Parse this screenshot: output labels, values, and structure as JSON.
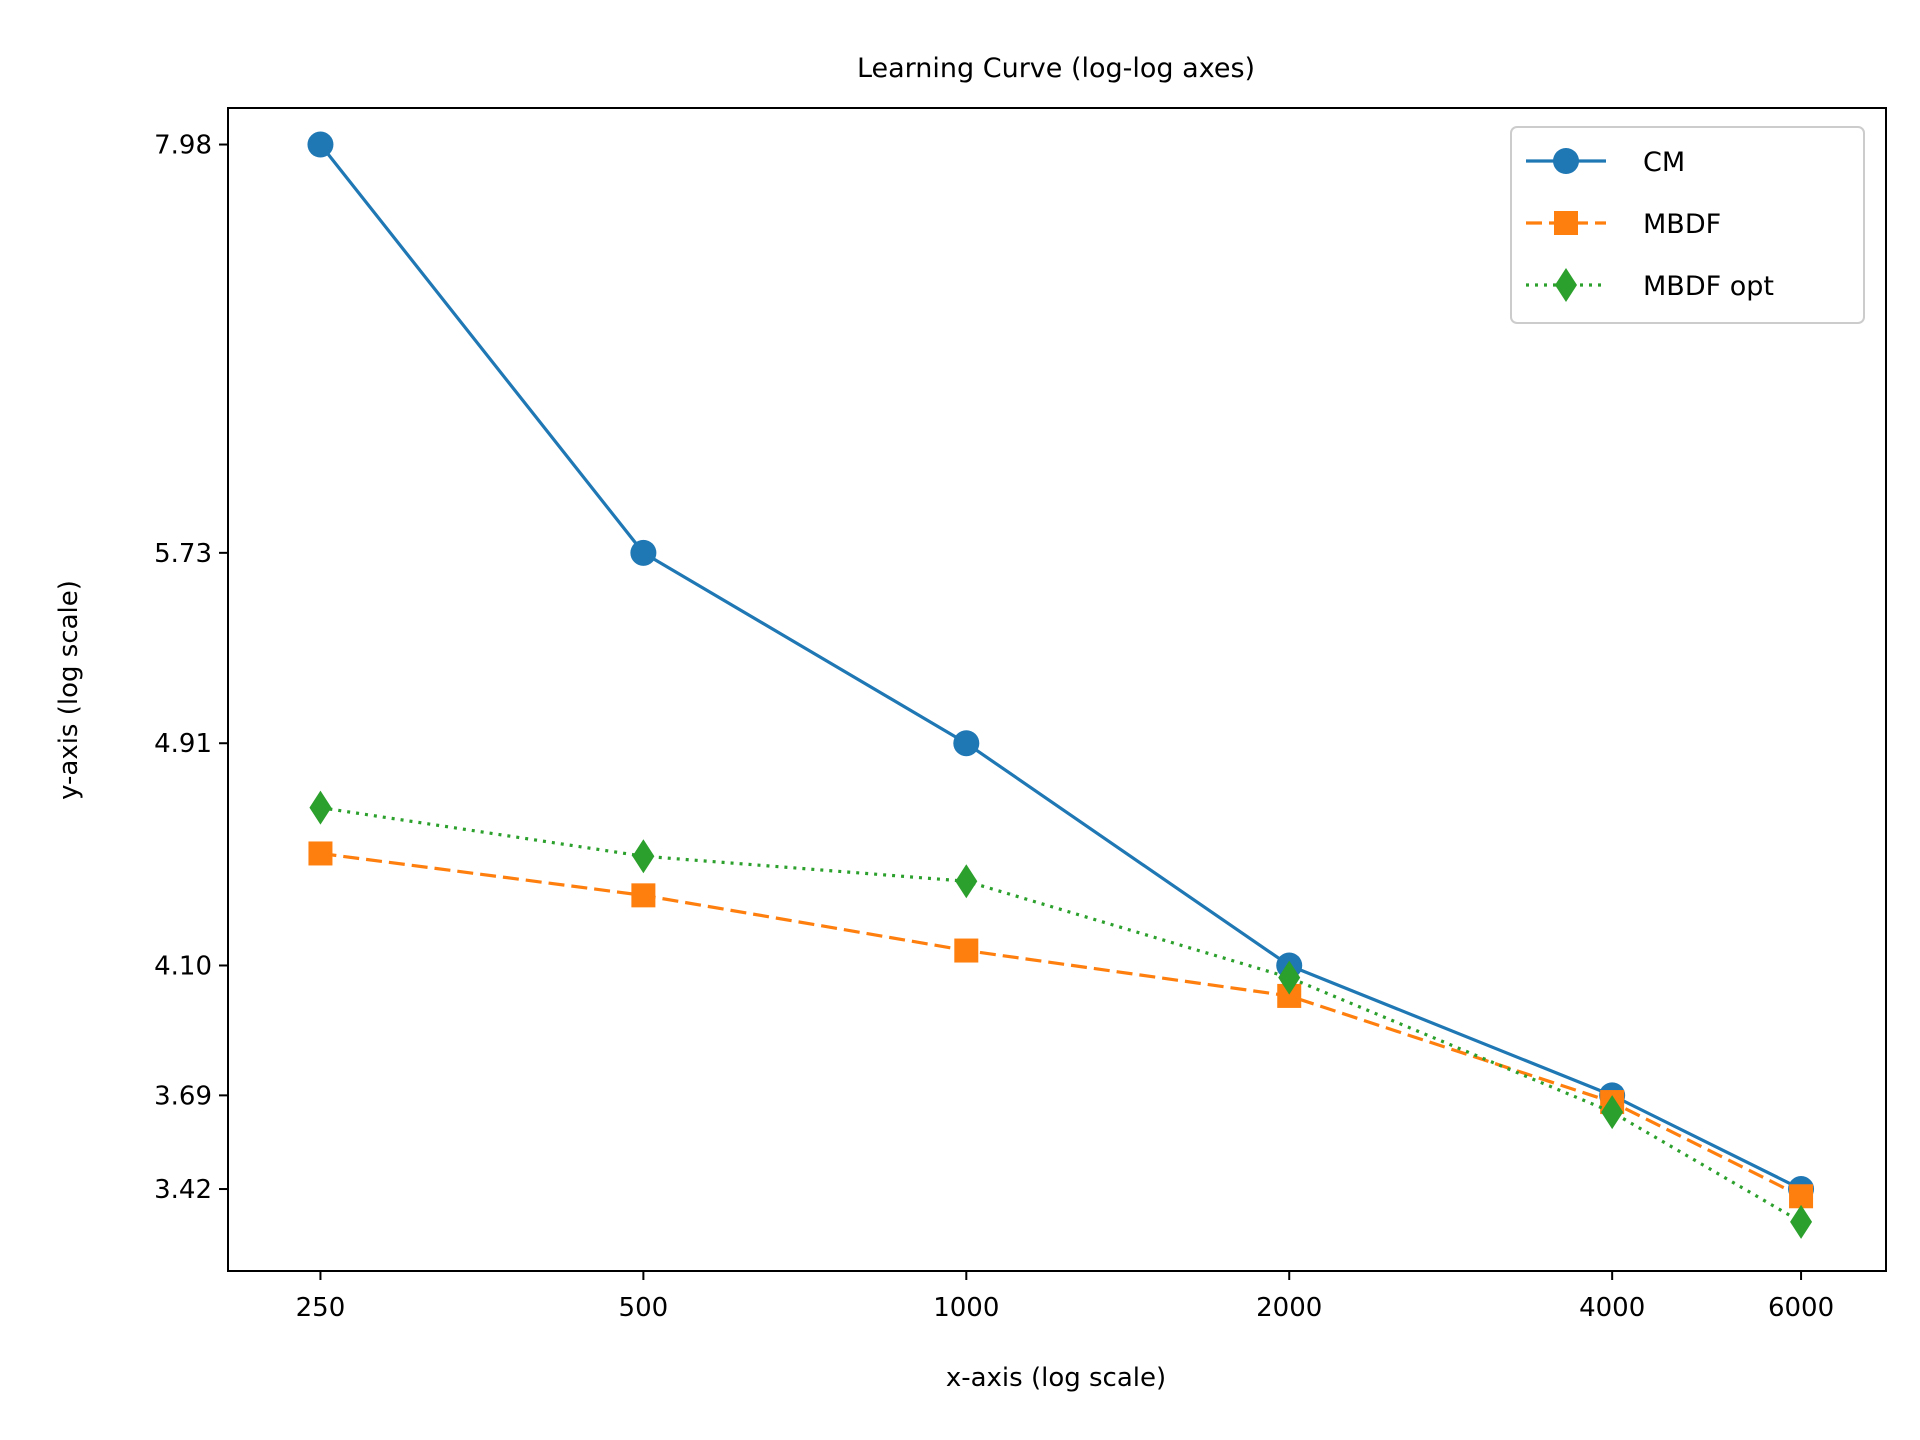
{
  "chart_data": {
    "type": "line",
    "title": "Learning Curve (log-log axes)",
    "xlabel": "x-axis (log scale)",
    "ylabel": "y-axis (log scale)",
    "xscale": "log",
    "yscale": "log",
    "grid": false,
    "legend_position": "top-right",
    "x": [
      250,
      500,
      1000,
      2000,
      4000,
      6000
    ],
    "x_tick_labels": [
      "250",
      "500",
      "1000",
      "2000",
      "4000",
      "6000"
    ],
    "y_ticks": [
      3.42,
      3.69,
      4.1,
      4.91,
      5.73,
      7.98
    ],
    "y_tick_labels": [
      "3.42",
      "3.69",
      "4.10",
      "4.91",
      "5.73",
      "7.98"
    ],
    "xlim": [
      205,
      7200
    ],
    "ylim": [
      3.2,
      8.22
    ],
    "series": [
      {
        "name": "CM",
        "values": [
          7.98,
          5.73,
          4.91,
          4.1,
          3.69,
          3.42
        ],
        "color": "#1f77b4",
        "line_style": "solid",
        "marker": "circle"
      },
      {
        "name": "MBDF",
        "values": [
          4.49,
          4.34,
          4.15,
          4.0,
          3.67,
          3.4
        ],
        "color": "#ff7f0e",
        "line_style": "dashed",
        "marker": "square"
      },
      {
        "name": "MBDF opt",
        "values": [
          4.66,
          4.48,
          4.39,
          4.06,
          3.64,
          3.33
        ],
        "color": "#2ca02c",
        "line_style": "dotted",
        "marker": "diamond"
      }
    ]
  }
}
